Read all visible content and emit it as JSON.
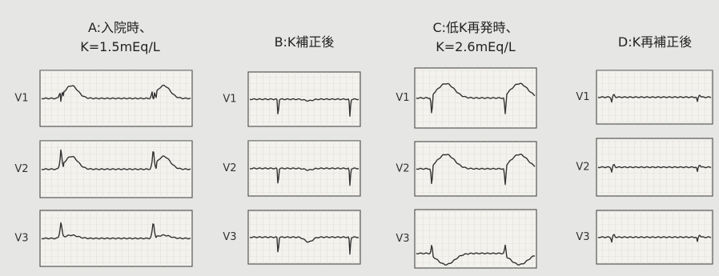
{
  "panels": [
    {
      "title": [
        "A:入院時、",
        "K=1.5mEq/L"
      ],
      "leads": [
        "V1",
        "V2",
        "V3"
      ]
    },
    {
      "title": [
        "B:K補正後"
      ],
      "leads": [
        "V1",
        "V2",
        "V3"
      ]
    },
    {
      "title": [
        "C:低K再発時、",
        "K=2.6mEq/L"
      ],
      "leads": [
        "V1",
        "V2",
        "V3"
      ]
    },
    {
      "title": [
        "D:K再補正後"
      ],
      "leads": [
        "V1",
        "V2",
        "V3"
      ]
    }
  ]
}
